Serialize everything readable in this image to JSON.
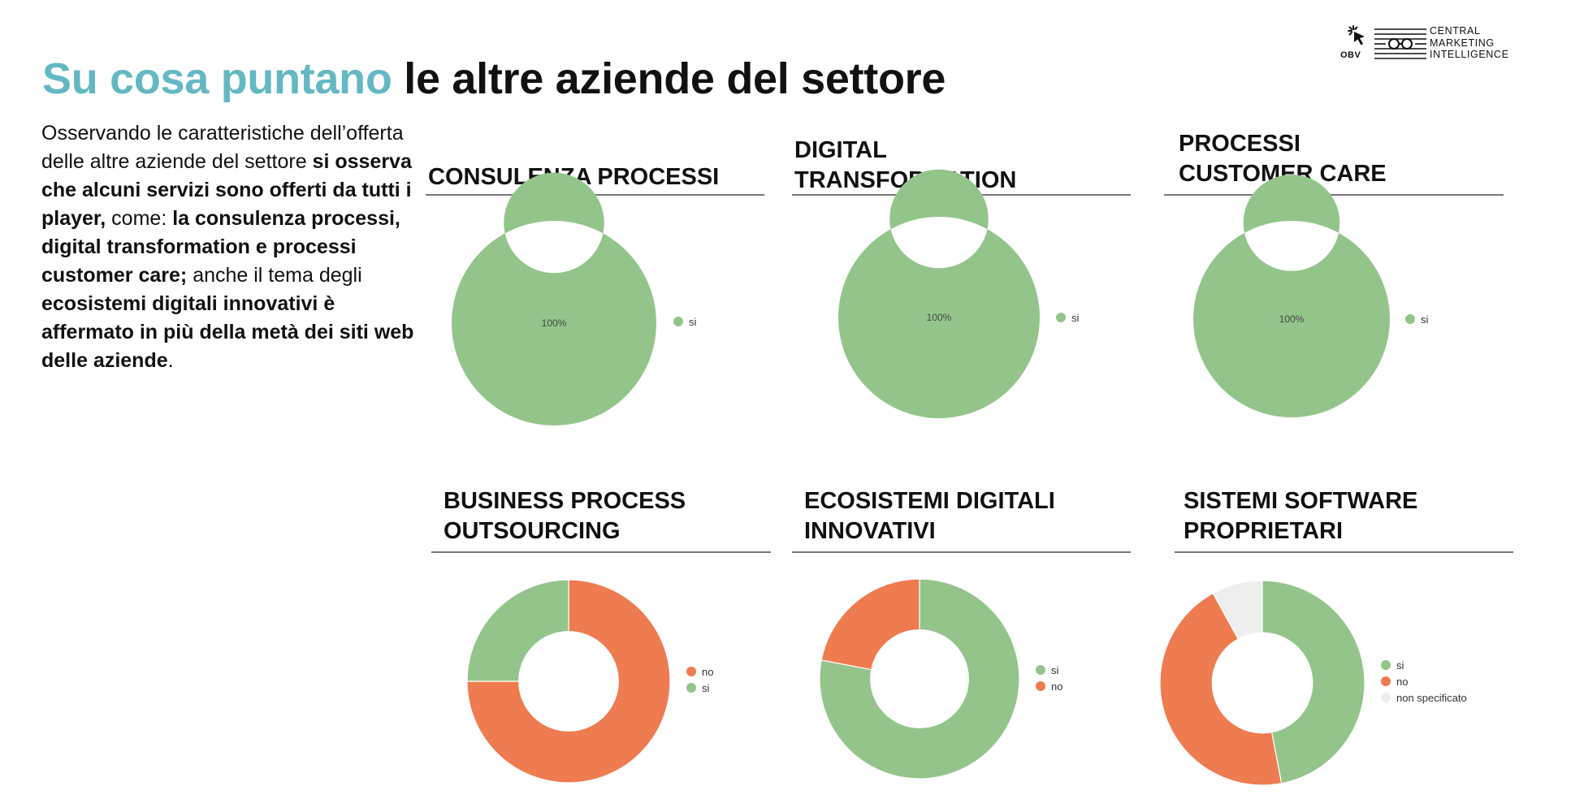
{
  "header": {
    "title_accent": "Su cosa puntano",
    "title_rest": " le altre aziende del settore"
  },
  "logo": {
    "obv_text": "OBV",
    "cmi_lines": [
      "CENTRAL",
      "MARKETING",
      "INTELLIGENCE"
    ]
  },
  "intro": {
    "segments": [
      {
        "text": "Osservando le caratteristiche dell’offerta delle altre aziende del settore ",
        "bold": false
      },
      {
        "text": "si osserva che alcuni servizi sono offerti da tutti i player,",
        "bold": true
      },
      {
        "text": " come: ",
        "bold": false
      },
      {
        "text": "la consulenza processi, digital transformation e processi customer care;",
        "bold": true
      },
      {
        "text": " anche il tema degli ",
        "bold": false
      },
      {
        "text": "ecosistemi digitali innovativi è affermato in più della metà dei siti web delle aziende",
        "bold": true
      },
      {
        "text": ".",
        "bold": false
      }
    ]
  },
  "colors": {
    "si": "#93c58a",
    "no": "#ef7b50",
    "non_specificato": "#eeeeee",
    "accent": "#63b8c4"
  },
  "chart_data": [
    {
      "type": "pie",
      "title": "CONSULENZA PROCESSI",
      "center_label": "100%",
      "slices": [
        {
          "label": "si",
          "value": 100,
          "color": "#93c58a"
        }
      ],
      "legend": [
        {
          "label": "si",
          "color": "#93c58a"
        }
      ]
    },
    {
      "type": "pie",
      "title": "DIGITAL TRANSFORMATION",
      "center_label": "100%",
      "slices": [
        {
          "label": "si",
          "value": 100,
          "color": "#93c58a"
        }
      ],
      "legend": [
        {
          "label": "si",
          "color": "#93c58a"
        }
      ]
    },
    {
      "type": "pie",
      "title": "PROCESSI CUSTOMER CARE",
      "center_label": "100%",
      "slices": [
        {
          "label": "si",
          "value": 100,
          "color": "#93c58a"
        }
      ],
      "legend": [
        {
          "label": "si",
          "color": "#93c58a"
        }
      ]
    },
    {
      "type": "pie",
      "title": "BUSINESS PROCESS OUTSOURCING",
      "center_label": "",
      "slices": [
        {
          "label": "no",
          "value": 75,
          "color": "#ef7b50"
        },
        {
          "label": "si",
          "value": 25,
          "color": "#93c58a"
        }
      ],
      "legend": [
        {
          "label": "no",
          "color": "#ef7b50"
        },
        {
          "label": "si",
          "color": "#93c58a"
        }
      ]
    },
    {
      "type": "pie",
      "title": "ECOSISTEMI DIGITALI INNOVATIVI",
      "center_label": "",
      "slices": [
        {
          "label": "si",
          "value": 78,
          "color": "#93c58a"
        },
        {
          "label": "no",
          "value": 22,
          "color": "#ef7b50"
        }
      ],
      "legend": [
        {
          "label": "si",
          "color": "#93c58a"
        },
        {
          "label": "no",
          "color": "#ef7b50"
        }
      ]
    },
    {
      "type": "pie",
      "title": "SISTEMI SOFTWARE PROPRIETARI",
      "center_label": "",
      "slices": [
        {
          "label": "si",
          "value": 47,
          "color": "#93c58a"
        },
        {
          "label": "no",
          "value": 45,
          "color": "#ef7b50"
        },
        {
          "label": "non specificato",
          "value": 8,
          "color": "#eeeeee"
        }
      ],
      "legend": [
        {
          "label": "si",
          "color": "#93c58a"
        },
        {
          "label": "no",
          "color": "#ef7b50"
        },
        {
          "label": "non specificato",
          "color": "#eeeeee"
        }
      ]
    }
  ]
}
